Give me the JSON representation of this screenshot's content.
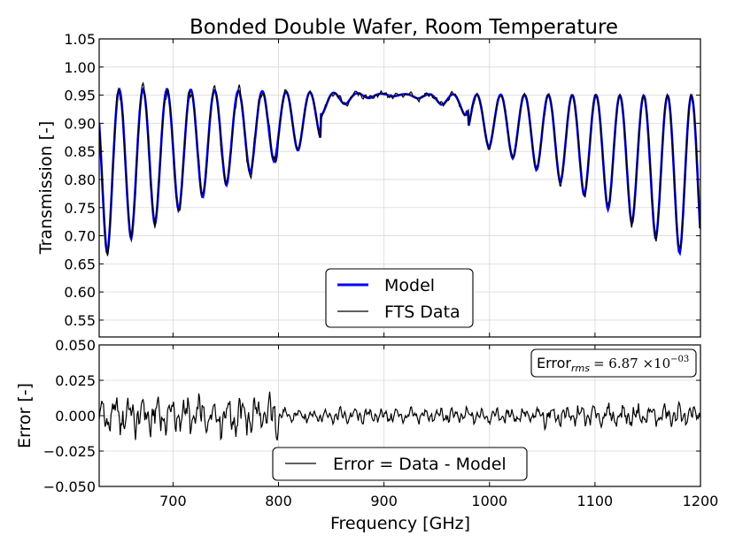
{
  "chart_data": [
    {
      "type": "line",
      "title": "Bonded Double Wafer, Room Temperature",
      "xlabel": "",
      "ylabel": "Transmission [-]",
      "xlim": [
        630,
        1200
      ],
      "ylim": [
        0.52,
        1.05
      ],
      "yticks": [
        "0.55",
        "0.60",
        "0.65",
        "0.70",
        "0.75",
        "0.80",
        "0.85",
        "0.90",
        "0.95",
        "1.00",
        "1.05"
      ],
      "grid": true,
      "legend_position": "bottom-center",
      "series": [
        {
          "name": "Model",
          "color": "#0000ff"
        },
        {
          "name": "FTS Data",
          "color": "#000000"
        }
      ],
      "model_params": {
        "center": 910,
        "period": 22.6,
        "phase_ref": 649,
        "envelope_left_depth": 0.26,
        "envelope_right_depth": 0.265,
        "upper_peak_left": 0.96,
        "upper_peak_center": 0.952
      }
    },
    {
      "type": "line",
      "title": "",
      "xlabel": "Frequency [GHz]",
      "ylabel": "Error [-]",
      "xlim": [
        630,
        1200
      ],
      "ylim": [
        -0.05,
        0.05
      ],
      "yticks": [
        "-0.050",
        "-0.025",
        "0.000",
        "0.025",
        "0.050"
      ],
      "xticks": [
        "700",
        "800",
        "900",
        "1000",
        "1100",
        "1200"
      ],
      "grid": true,
      "legend_position": "bottom-center",
      "series": [
        {
          "name": "Error = Data - Model",
          "color": "#000000"
        }
      ],
      "annotation": {
        "label": "Error",
        "subscript": "rms",
        "value": "= 6.87 ×10",
        "exponent": "−03"
      }
    }
  ]
}
